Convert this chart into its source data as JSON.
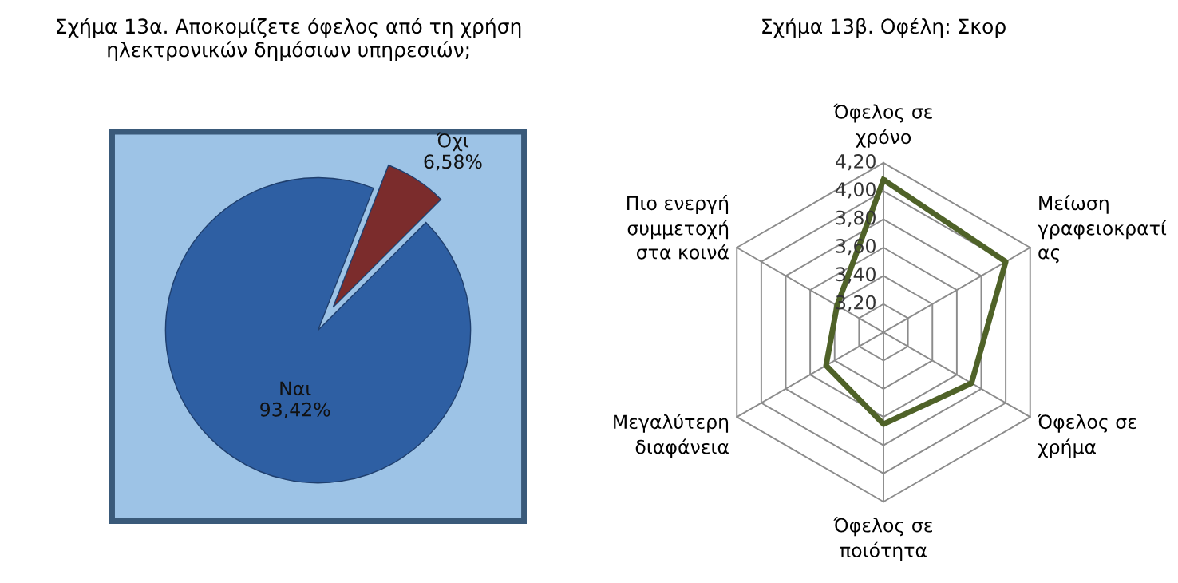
{
  "chart_data": [
    {
      "type": "pie",
      "title": "Σχήμα 13α. Αποκομίζετε όφελος από τη χρήση\nηλεκτρονικών δημόσιων υπηρεσιών;",
      "categories": [
        "Ναι",
        "Όχι"
      ],
      "values": [
        93.42,
        6.58
      ],
      "colors": [
        "#2e5fa3",
        "#7b2c2c"
      ],
      "value_labels": [
        "93,42%",
        "6,58%"
      ]
    },
    {
      "type": "radar",
      "title": "Σχήμα 13β. Οφέλη: Σκορ",
      "categories": [
        "Όφελος σε\nχρόνο",
        "Μείωση\nγραφειοκρατί\nας",
        "Όφελος σε\nχρήμα",
        "Όφελος σε\nποιότητα",
        "Μεγαλύτερη\nδιαφάνεια",
        "Πιο ενεργή\nσυμμετοχή\nστα κοινά"
      ],
      "series": [
        {
          "color": "#4f6228",
          "values": [
            4.08,
            4.0,
            3.72,
            3.65,
            3.47,
            3.38
          ]
        }
      ],
      "ylim": [
        3.0,
        4.2
      ],
      "yticks": [
        {
          "value": 3.2,
          "label": "3,20"
        },
        {
          "value": 3.4,
          "label": "3,40"
        },
        {
          "value": 3.6,
          "label": "3,60"
        },
        {
          "value": 3.8,
          "label": "3,80"
        },
        {
          "value": 4.0,
          "label": "4,00"
        },
        {
          "value": 4.2,
          "label": "4,20"
        }
      ],
      "grid": true
    }
  ]
}
